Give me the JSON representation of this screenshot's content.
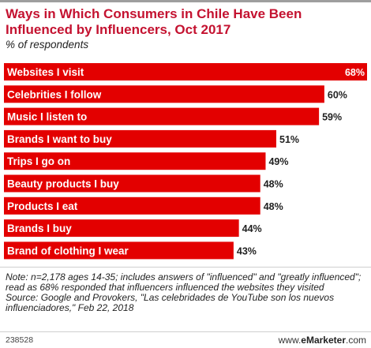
{
  "title": "Ways in Which Consumers in Chile Have Been Influenced by Influencers, Oct 2017",
  "subtitle": "% of respondents",
  "chart_data": {
    "type": "bar",
    "orientation": "horizontal",
    "title": "Ways in Which Consumers in Chile Have Been Influenced by Influencers, Oct 2017",
    "subtitle": "% of respondents",
    "categories": [
      "Websites I visit",
      "Celebrities I follow",
      "Music I listen to",
      "Brands I want to buy",
      "Trips I go on",
      "Beauty products I buy",
      "Products I eat",
      "Brands I buy",
      "Brand of clothing I wear"
    ],
    "values": [
      68,
      60,
      59,
      51,
      49,
      48,
      48,
      44,
      43
    ],
    "value_suffix": "%",
    "xlim": [
      0,
      68
    ],
    "bar_color": "#e30000",
    "grid": false,
    "legend": false
  },
  "note": "Note: n=2,178 ages 14-35; includes answers of \"influenced\" and \"greatly influenced\"; read as 68% responded that influencers influenced the websites they visited",
  "source": "Source: Google and Provokers, \"Las celebridades de YouTube son los nuevos influenciadores,\" Feb 22, 2018",
  "footer": {
    "code": "238528",
    "brand_prefix": "www.",
    "brand_name": "eMarketer",
    "brand_suffix": ".com"
  }
}
